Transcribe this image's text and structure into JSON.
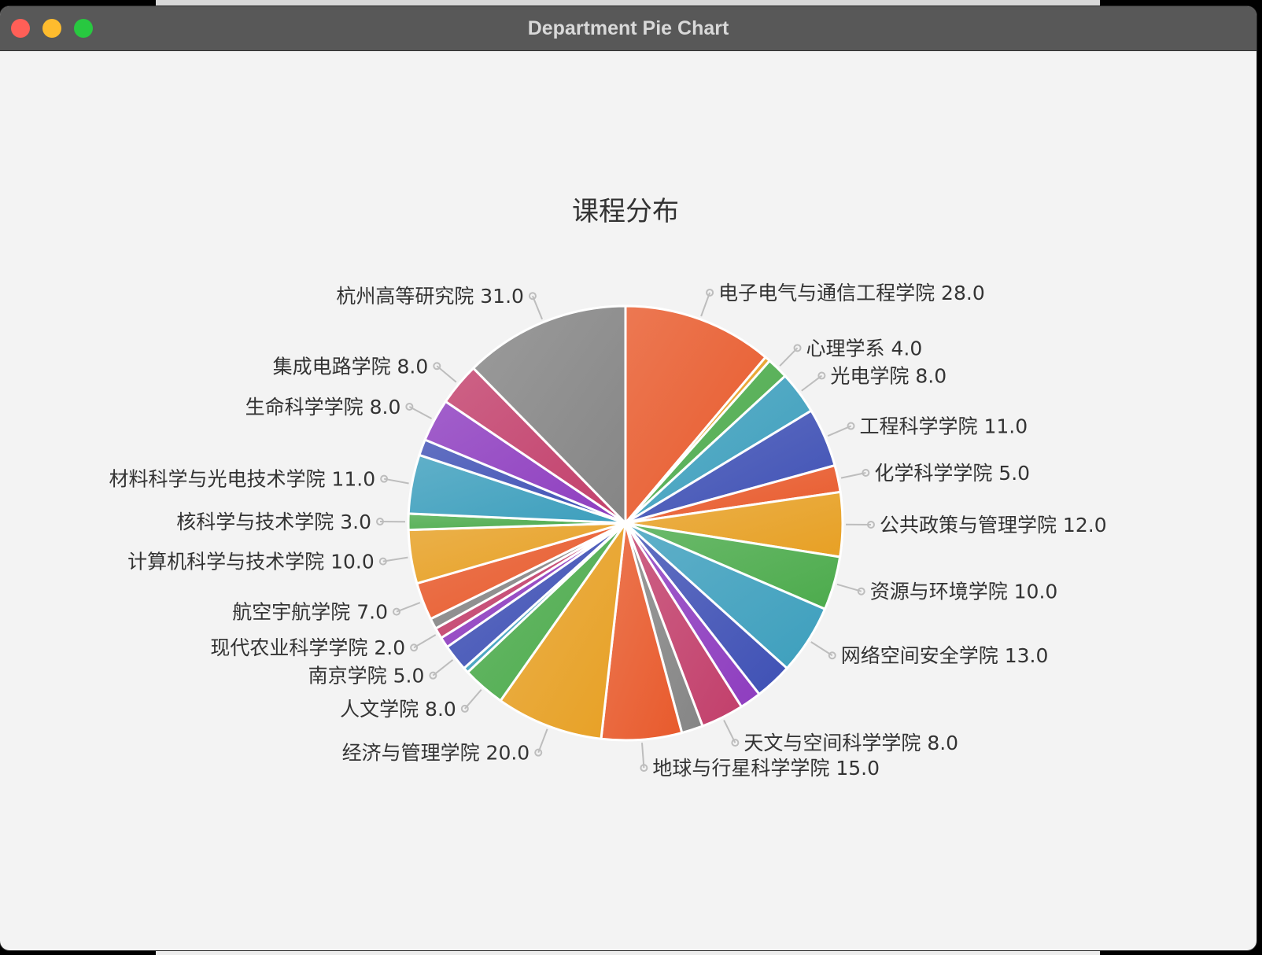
{
  "window": {
    "title": "Department Pie Chart"
  },
  "colors": {
    "titlebar": "#585858",
    "background": "#f3f3f3",
    "close": "#ff5f57",
    "minimize": "#febc2e",
    "maximize": "#28c840"
  },
  "chart_data": {
    "type": "pie",
    "title": "课程分布",
    "start_angle_deg": 90,
    "direction": "clockwise",
    "slices": [
      {
        "label": "电子电气与通信工程学院",
        "value": 28.0,
        "color": "#e85a2c"
      },
      {
        "label": "",
        "value": 1.0,
        "color": "#e7a024"
      },
      {
        "label": "心理学系",
        "value": 4.0,
        "color": "#4cab4c"
      },
      {
        "label": "光电学院",
        "value": 8.0,
        "color": "#3d9fbd"
      },
      {
        "label": "工程科学学院",
        "value": 11.0,
        "color": "#3f51b5"
      },
      {
        "label": "化学科学学院",
        "value": 5.0,
        "color": "#e85a2c"
      },
      {
        "label": "公共政策与管理学院",
        "value": 12.0,
        "color": "#e7a024"
      },
      {
        "label": "资源与环境学院",
        "value": 10.0,
        "color": "#4cab4c"
      },
      {
        "label": "网络空间安全学院",
        "value": 13.0,
        "color": "#3d9fbd"
      },
      {
        "label": "",
        "value": 7.0,
        "color": "#3f51b5"
      },
      {
        "label": "",
        "value": 4.0,
        "color": "#8e3dbf"
      },
      {
        "label": "天文与空间科学学院",
        "value": 8.0,
        "color": "#c23f6b"
      },
      {
        "label": "",
        "value": 4.0,
        "color": "#858585"
      },
      {
        "label": "地球与行星科学学院",
        "value": 15.0,
        "color": "#e85a2c"
      },
      {
        "label": "经济与管理学院",
        "value": 20.0,
        "color": "#e7a024"
      },
      {
        "label": "人文学院",
        "value": 8.0,
        "color": "#4cab4c"
      },
      {
        "label": "",
        "value": 1.0,
        "color": "#3d9fbd"
      },
      {
        "label": "南京学院",
        "value": 5.0,
        "color": "#3f51b5"
      },
      {
        "label": "",
        "value": 2.0,
        "color": "#8e3dbf"
      },
      {
        "label": "现代农业科学学院",
        "value": 2.0,
        "color": "#c23f6b"
      },
      {
        "label": "",
        "value": 2.0,
        "color": "#858585"
      },
      {
        "label": "航空宇航学院",
        "value": 7.0,
        "color": "#e85a2c"
      },
      {
        "label": "计算机科学与技术学院",
        "value": 10.0,
        "color": "#e7a024"
      },
      {
        "label": "核科学与技术学院",
        "value": 3.0,
        "color": "#4cab4c"
      },
      {
        "label": "材料科学与光电技术学院",
        "value": 11.0,
        "color": "#3d9fbd"
      },
      {
        "label": "",
        "value": 3.0,
        "color": "#3f51b5"
      },
      {
        "label": "生命科学学院",
        "value": 8.0,
        "color": "#8e3dbf"
      },
      {
        "label": "集成电路学院",
        "value": 8.0,
        "color": "#c23f6b"
      },
      {
        "label": "杭州高等研究院",
        "value": 31.0,
        "color": "#858585"
      }
    ]
  }
}
